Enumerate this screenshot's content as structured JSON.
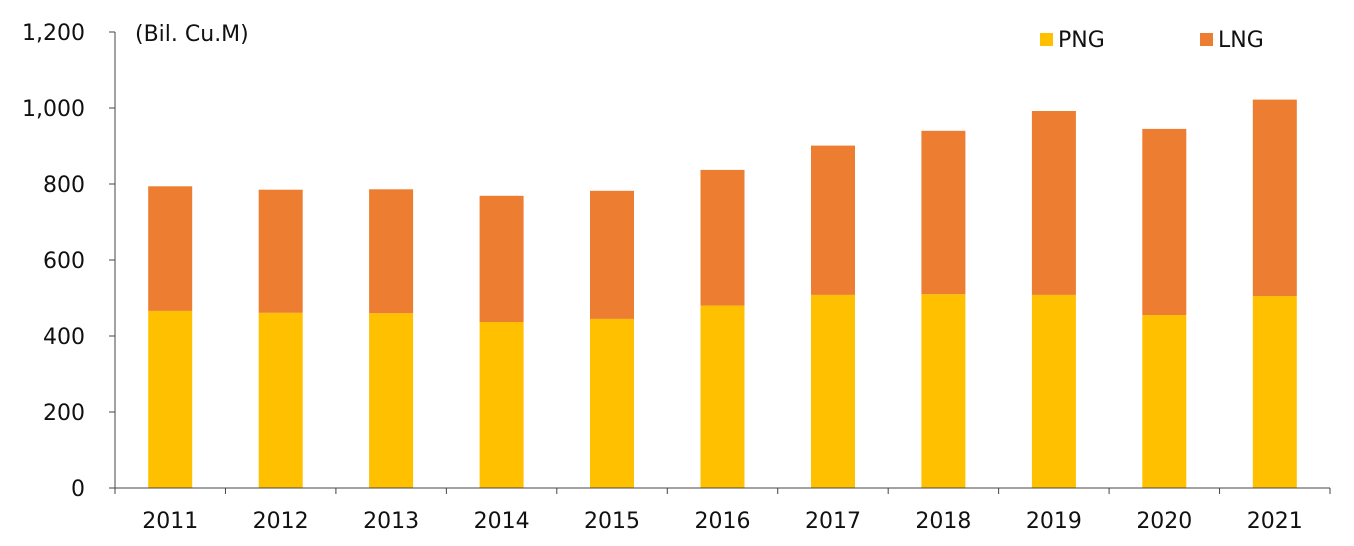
{
  "chart_data": {
    "type": "bar",
    "stacked": true,
    "unit_label": "(Bil. Cu.M)",
    "categories": [
      "2011",
      "2012",
      "2013",
      "2014",
      "2015",
      "2016",
      "2017",
      "2018",
      "2019",
      "2020",
      "2021"
    ],
    "series": [
      {
        "name": "PNG",
        "color": "#FFC000",
        "values": [
          466,
          461,
          460,
          437,
          445,
          480,
          508,
          510,
          508,
          455,
          505
        ]
      },
      {
        "name": "LNG",
        "color": "#ED7D31",
        "values": [
          328,
          324,
          326,
          332,
          337,
          357,
          393,
          430,
          484,
          490,
          517
        ]
      }
    ],
    "ylim": [
      0,
      1200
    ],
    "yticks": [
      0,
      200,
      400,
      600,
      800,
      1000,
      1200
    ],
    "ytick_labels": [
      "0",
      "200",
      "400",
      "600",
      "800",
      "1,000",
      "1,200"
    ],
    "grid": false,
    "legend_position": "top-right"
  }
}
